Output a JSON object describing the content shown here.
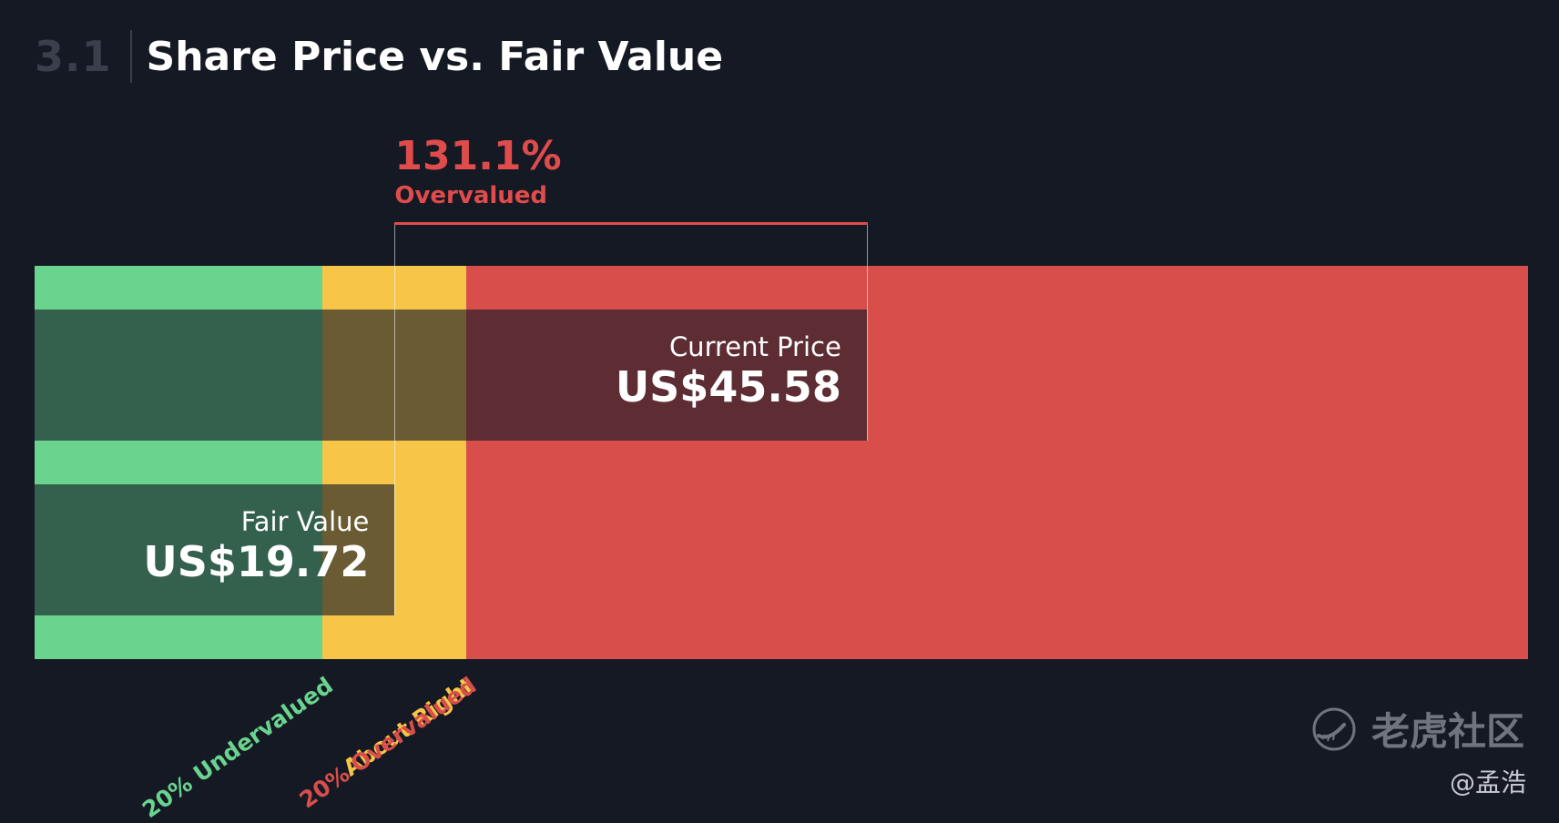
{
  "header": {
    "section_number": "3.1",
    "title": "Share Price vs. Fair Value"
  },
  "chart_data": {
    "type": "bar",
    "unit": "US$",
    "fair_value": {
      "label": "Fair Value",
      "value": 19.72,
      "display": "US$19.72"
    },
    "current_price": {
      "label": "Current Price",
      "value": 45.58,
      "display": "US$45.58"
    },
    "difference": {
      "percent": "131.1%",
      "label": "Overvalued"
    },
    "zones": [
      {
        "name": "20% Undervalued",
        "color": "#6ad48f"
      },
      {
        "name": "About Right",
        "color": "#f7c548"
      },
      {
        "name": "20% Overvalued",
        "color": "#d84e4b"
      }
    ],
    "zone_bounds": {
      "undervalued_below": 15.776,
      "overvalued_above": 23.664
    },
    "x_range": [
      0,
      81.8
    ]
  },
  "watermark": {
    "brand": "老虎社区",
    "icon": "tiger-community-logo-icon",
    "author": "@孟浩"
  }
}
